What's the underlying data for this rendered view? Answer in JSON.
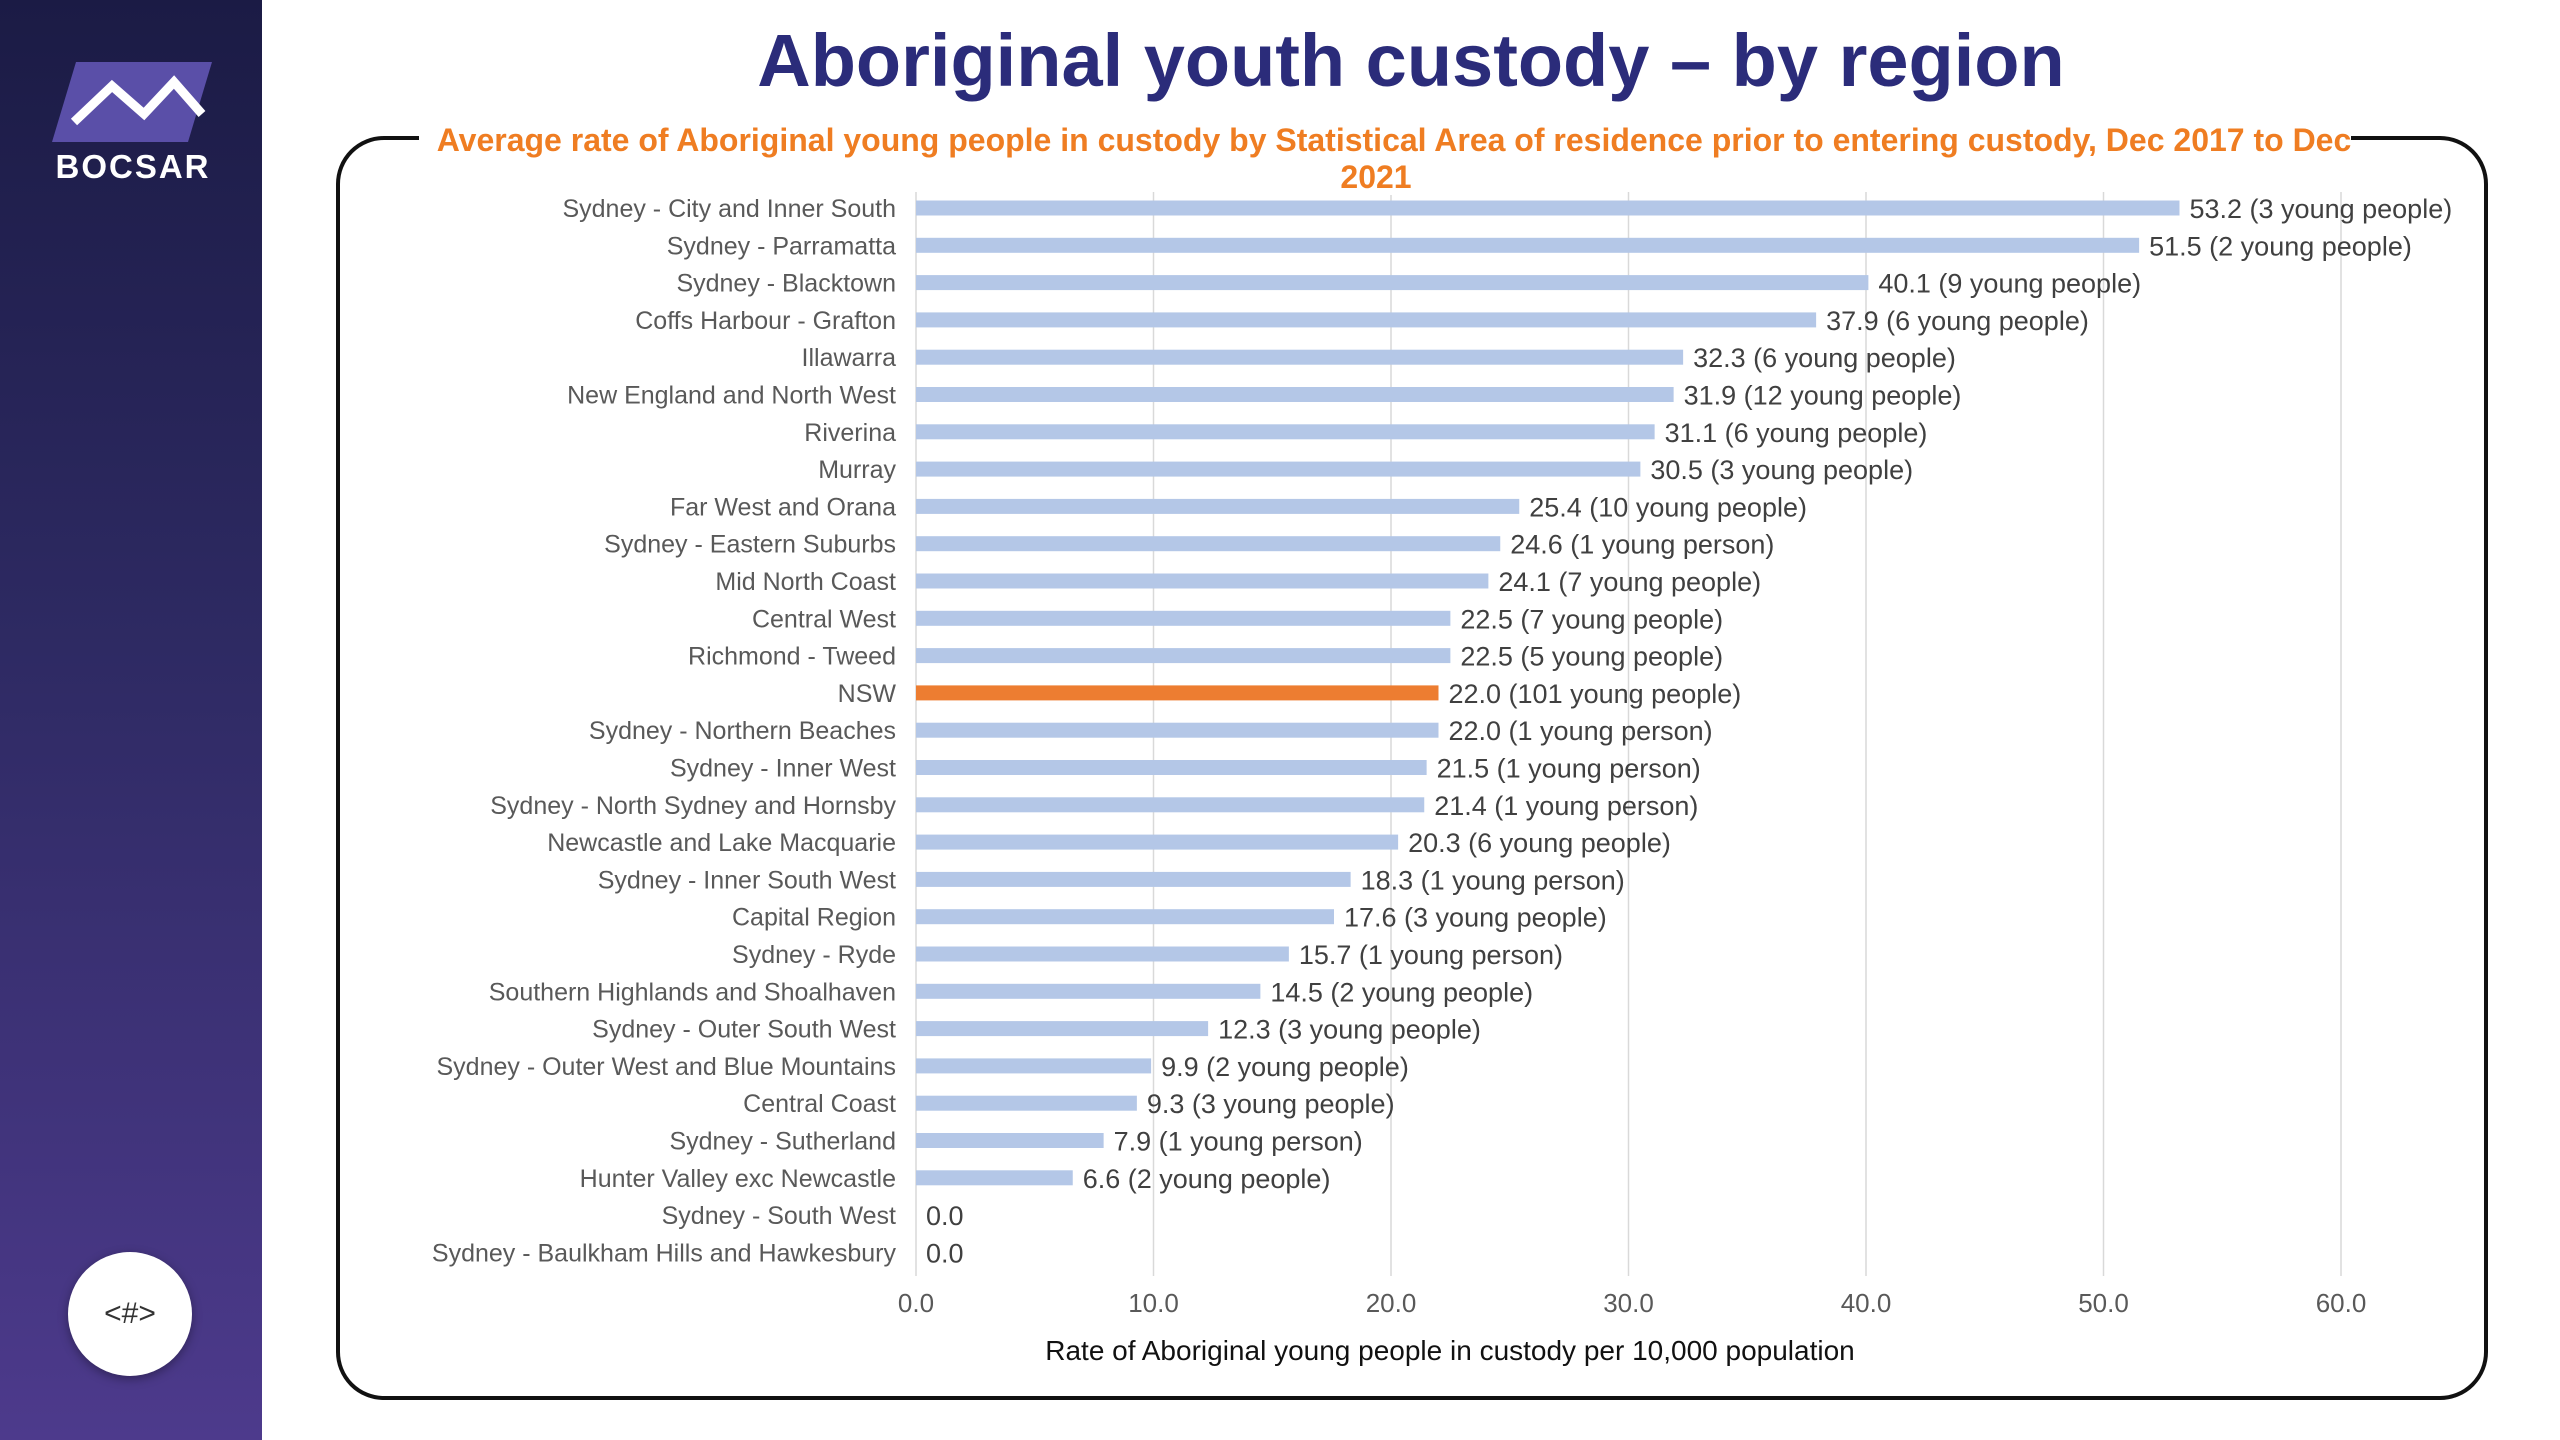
{
  "sidebar": {
    "logo_text": "BOCSAR",
    "logo_icon": "bocsar-chart-logo",
    "page_button_label": "<#>"
  },
  "slide": {
    "title": "Aboriginal youth custody – by region"
  },
  "colors": {
    "bar": "#b4c7e7",
    "highlight_bar": "#ed7d31",
    "title": "#2b2c7a",
    "subtitle": "#ef7d22"
  },
  "chart_data": {
    "type": "bar",
    "orientation": "horizontal",
    "title": "Average rate of Aboriginal young people in custody by Statistical Area of residence prior to entering custody, Dec 2017 to Dec 2021",
    "xlabel": "Rate of Aboriginal young people in custody per 10,000 population",
    "ylabel": "",
    "xlim": [
      0,
      60
    ],
    "xticks": [
      "0.0",
      "10.0",
      "20.0",
      "30.0",
      "40.0",
      "50.0",
      "60.0"
    ],
    "grid": true,
    "highlight_category": "NSW",
    "categories": [
      "Sydney - City and Inner South",
      "Sydney - Parramatta",
      "Sydney - Blacktown",
      "Coffs Harbour - Grafton",
      "Illawarra",
      "New England and North West",
      "Riverina",
      "Murray",
      "Far West and Orana",
      "Sydney - Eastern Suburbs",
      "Mid North Coast",
      "Central West",
      "Richmond - Tweed",
      "NSW",
      "Sydney - Northern Beaches",
      "Sydney - Inner West",
      "Sydney - North Sydney and Hornsby",
      "Newcastle and Lake Macquarie",
      "Sydney - Inner South West",
      "Capital Region",
      "Sydney - Ryde",
      "Southern Highlands and Shoalhaven",
      "Sydney - Outer South West",
      "Sydney - Outer West and Blue Mountains",
      "Central Coast",
      "Sydney - Sutherland",
      "Hunter Valley exc Newcastle",
      "Sydney - South West",
      "Sydney - Baulkham Hills and Hawkesbury"
    ],
    "values": [
      53.2,
      51.5,
      40.1,
      37.9,
      32.3,
      31.9,
      31.1,
      30.5,
      25.4,
      24.6,
      24.1,
      22.5,
      22.5,
      22.0,
      22.0,
      21.5,
      21.4,
      20.3,
      18.3,
      17.6,
      15.7,
      14.5,
      12.3,
      9.9,
      9.3,
      7.9,
      6.6,
      0.0,
      0.0
    ],
    "data_labels": [
      "53.2 (3 young people)",
      "51.5 (2 young people)",
      "40.1 (9 young people)",
      "37.9 (6 young people)",
      "32.3 (6 young people)",
      "31.9 (12 young people)",
      "31.1 (6 young people)",
      "30.5 (3 young people)",
      "25.4 (10 young people)",
      "24.6 (1 young person)",
      "24.1 (7 young people)",
      "22.5 (7 young people)",
      "22.5 (5 young people)",
      "22.0 (101 young people)",
      "22.0 (1 young person)",
      "21.5 (1 young person)",
      "21.4 (1 young person)",
      "20.3 (6 young people)",
      "18.3 (1 young person)",
      "17.6 (3 young people)",
      "15.7 (1 young person)",
      "14.5 (2 young people)",
      "12.3 (3 young people)",
      "9.9 (2 young people)",
      "9.3 (3 young people)",
      "7.9 (1 young person)",
      "6.6 (2 young people)",
      "0.0",
      "0.0"
    ]
  }
}
